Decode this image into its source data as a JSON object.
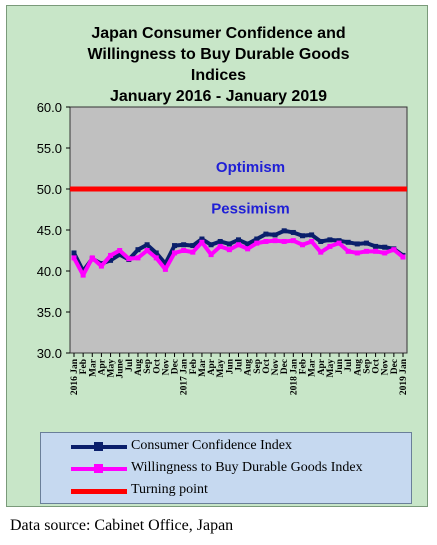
{
  "chart_data": {
    "type": "line",
    "title": "Japan Consumer Confidence and Willingness to Buy Durable Goods Indices",
    "title_lines": [
      "Japan Consumer Confidence and",
      "Willingness to Buy Durable Goods",
      "Indices",
      "January 2016 -  January 2019"
    ],
    "xlabel": "",
    "ylabel": "",
    "ylim": [
      30.0,
      60.0
    ],
    "yticks": [
      "60.0",
      "55.0",
      "50.0",
      "45.0",
      "40.0",
      "35.0",
      "30.0"
    ],
    "ytick_values": [
      60,
      55,
      50,
      45,
      40,
      35,
      30
    ],
    "x": [
      "2016 Jan",
      "Feb",
      "Mar",
      "Apr",
      "May",
      "Jun",
      "Jul",
      "Aug",
      "Sep",
      "Oct",
      "Nov",
      "Dec",
      "2017 Jan",
      "Feb",
      "Mar",
      "Apr",
      "May",
      "Jun",
      "Jul",
      "Aug",
      "Sep",
      "Oct",
      "Nov",
      "Dec",
      "2018 Jan",
      "Feb",
      "Mar",
      "Apr",
      "May",
      "Jun",
      "Jul",
      "Aug",
      "Sep",
      "Oct",
      "Nov",
      "Dec",
      "2019 Jan"
    ],
    "x_tick_labels": [
      "2016 Jan",
      "Feb",
      "Mar",
      "Apr",
      "May",
      "June",
      "Jul",
      "Aug",
      "Sep",
      "Oct",
      "Nov",
      "Dec",
      "2017 Jan",
      "Feb",
      "Mar",
      "Apr",
      "May",
      "Jun",
      "Jul",
      "Aug",
      "Sep",
      "Oct",
      "Nov",
      "Dec",
      "2018 Jan",
      "Feb",
      "Mar",
      "Apr",
      "May",
      "Jun",
      "Jul",
      "Aug",
      "Sep",
      "Oct",
      "Nov",
      "Dec",
      "2019 Jan"
    ],
    "series": [
      {
        "name": "Consumer Confidence Index",
        "color": "#0a1f6b",
        "values": [
          42.2,
          40.0,
          41.5,
          40.9,
          41.3,
          42.0,
          41.4,
          42.6,
          43.2,
          42.2,
          40.9,
          43.1,
          43.2,
          43.1,
          43.9,
          43.2,
          43.6,
          43.3,
          43.8,
          43.3,
          43.9,
          44.5,
          44.4,
          44.9,
          44.7,
          44.3,
          44.4,
          43.6,
          43.8,
          43.7,
          43.5,
          43.3,
          43.4,
          43.0,
          42.9,
          42.7,
          41.9
        ]
      },
      {
        "name": "Willingness to Buy Durable Goods Index",
        "color": "#ff00ff",
        "values": [
          41.6,
          39.5,
          41.6,
          40.6,
          41.9,
          42.5,
          41.5,
          41.6,
          42.5,
          41.6,
          40.2,
          42.2,
          42.5,
          42.3,
          43.5,
          42.0,
          43.0,
          42.6,
          43.2,
          42.7,
          43.4,
          43.6,
          43.7,
          43.6,
          43.7,
          43.2,
          43.6,
          42.3,
          43.0,
          43.4,
          42.4,
          42.2,
          42.4,
          42.4,
          42.2,
          42.6,
          41.7
        ]
      },
      {
        "name": "Turning point",
        "color": "#ff0000",
        "values": [
          50,
          50,
          50,
          50,
          50,
          50,
          50,
          50,
          50,
          50,
          50,
          50,
          50,
          50,
          50,
          50,
          50,
          50,
          50,
          50,
          50,
          50,
          50,
          50,
          50,
          50,
          50,
          50,
          50,
          50,
          50,
          50,
          50,
          50,
          50,
          50,
          50
        ]
      }
    ],
    "annotations": [
      "Optimism",
      "Pessimism"
    ],
    "grid": false,
    "legend_position": "bottom"
  },
  "colors": {
    "background": "#c8e6c8",
    "plot_area": "#c0c0c0",
    "annotation_text": "#1f1fd6",
    "legend_box": "#c6d9f0"
  },
  "source_text": "Data source: Cabinet Office, Japan"
}
